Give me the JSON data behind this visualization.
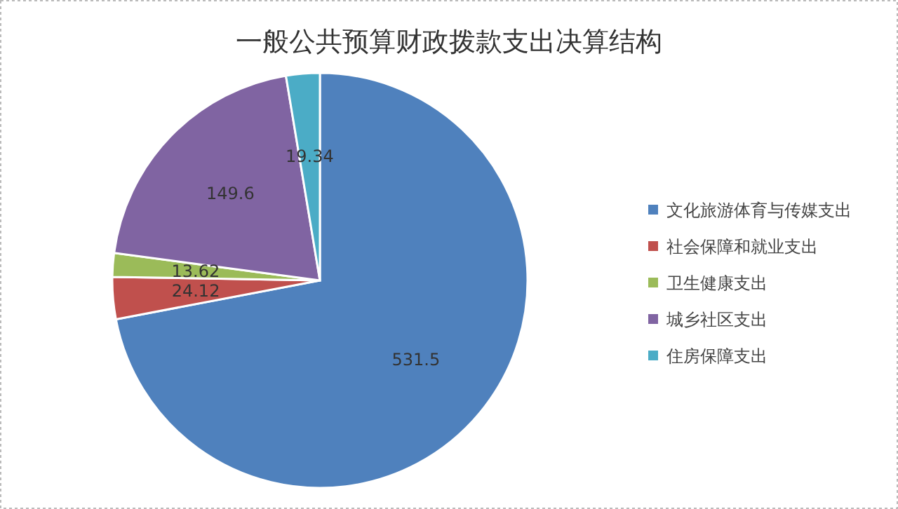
{
  "chart_data": {
    "type": "pie",
    "title": "一般公共预算财政拨款支出决算结构",
    "categories": [
      "文化旅游体育与传媒支出",
      "社会保障和就业支出",
      "卫生健康支出",
      "城乡社区支出",
      "住房保障支出"
    ],
    "values": [
      531.5,
      24.12,
      13.62,
      149.6,
      19.34
    ],
    "colors": [
      "#4f81bd",
      "#c0504d",
      "#9bbb59",
      "#8064a2",
      "#4bacc6"
    ],
    "data_labels": true,
    "legend": "right"
  }
}
